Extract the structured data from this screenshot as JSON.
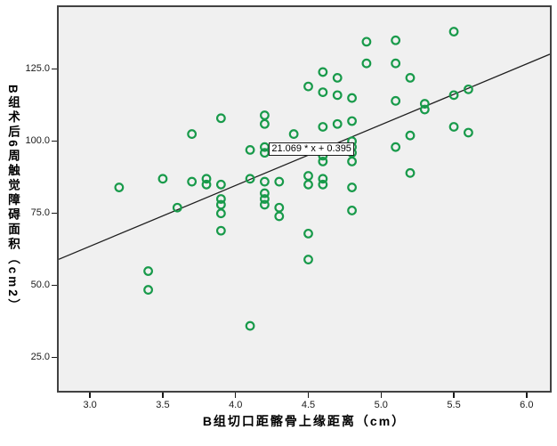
{
  "chart_data": {
    "type": "scatter",
    "title": "",
    "xlabel": "B组切口距髂骨上缘距离（cm）",
    "ylabel": "B组术后6周触觉障碍面积（cm2）",
    "x_ticks": [
      3.0,
      3.5,
      4.0,
      4.5,
      5.0,
      5.5,
      6.0
    ],
    "x_tick_labels": [
      "3.0",
      "3.5",
      "4.0",
      "4.5",
      "5.0",
      "5.5",
      "6.0"
    ],
    "y_ticks": [
      25.0,
      50.0,
      75.0,
      100.0,
      125.0
    ],
    "y_tick_labels": [
      "25.0",
      "50.0",
      "75.0",
      "100.0",
      "125.0"
    ],
    "xlim": [
      2.785,
      6.16
    ],
    "ylim": [
      13.5,
      146.5
    ],
    "grid": false,
    "legend": null,
    "marker": {
      "shape": "open-circle",
      "color": "#189a4a",
      "radius": 4.3,
      "stroke_width": 2.2
    },
    "fit_line": {
      "slope": 21.069,
      "intercept": 0.395,
      "label": "21.069 * x + 0.395",
      "color": "#1f1f1f",
      "label_pos": {
        "x": 4.23,
        "y": 97.5
      }
    },
    "points": [
      [
        3.2,
        84
      ],
      [
        3.4,
        55
      ],
      [
        3.4,
        48.5
      ],
      [
        3.5,
        87
      ],
      [
        3.6,
        77
      ],
      [
        3.7,
        102.5
      ],
      [
        3.7,
        86
      ],
      [
        3.8,
        87
      ],
      [
        3.8,
        85
      ],
      [
        3.9,
        108
      ],
      [
        3.9,
        85
      ],
      [
        3.9,
        80
      ],
      [
        3.9,
        78
      ],
      [
        3.9,
        75
      ],
      [
        3.9,
        69
      ],
      [
        4.1,
        97
      ],
      [
        4.1,
        87
      ],
      [
        4.1,
        36
      ],
      [
        4.2,
        109
      ],
      [
        4.2,
        106
      ],
      [
        4.2,
        98
      ],
      [
        4.2,
        96
      ],
      [
        4.2,
        86
      ],
      [
        4.2,
        82
      ],
      [
        4.2,
        80
      ],
      [
        4.2,
        78
      ],
      [
        4.3,
        86
      ],
      [
        4.3,
        77
      ],
      [
        4.3,
        74
      ],
      [
        4.4,
        102.5
      ],
      [
        4.5,
        119
      ],
      [
        4.5,
        88
      ],
      [
        4.5,
        85
      ],
      [
        4.5,
        68
      ],
      [
        4.5,
        59
      ],
      [
        4.6,
        124
      ],
      [
        4.6,
        117
      ],
      [
        4.6,
        105
      ],
      [
        4.6,
        95
      ],
      [
        4.6,
        93
      ],
      [
        4.6,
        87
      ],
      [
        4.6,
        85
      ],
      [
        4.7,
        122
      ],
      [
        4.7,
        116
      ],
      [
        4.7,
        106
      ],
      [
        4.8,
        115
      ],
      [
        4.8,
        107
      ],
      [
        4.8,
        100
      ],
      [
        4.8,
        98
      ],
      [
        4.8,
        96
      ],
      [
        4.8,
        93
      ],
      [
        4.8,
        84
      ],
      [
        4.8,
        76
      ],
      [
        4.9,
        134.5
      ],
      [
        4.9,
        127
      ],
      [
        5.1,
        135
      ],
      [
        5.1,
        127
      ],
      [
        5.1,
        114
      ],
      [
        5.1,
        98
      ],
      [
        5.2,
        122
      ],
      [
        5.2,
        102
      ],
      [
        5.2,
        89
      ],
      [
        5.3,
        113
      ],
      [
        5.3,
        111
      ],
      [
        5.5,
        138
      ],
      [
        5.5,
        116
      ],
      [
        5.5,
        105
      ],
      [
        5.6,
        118
      ],
      [
        5.6,
        103
      ]
    ]
  },
  "plot_style": {
    "background": "#f0f0f0",
    "frame_color": "#424242",
    "text_color": "#000000"
  }
}
